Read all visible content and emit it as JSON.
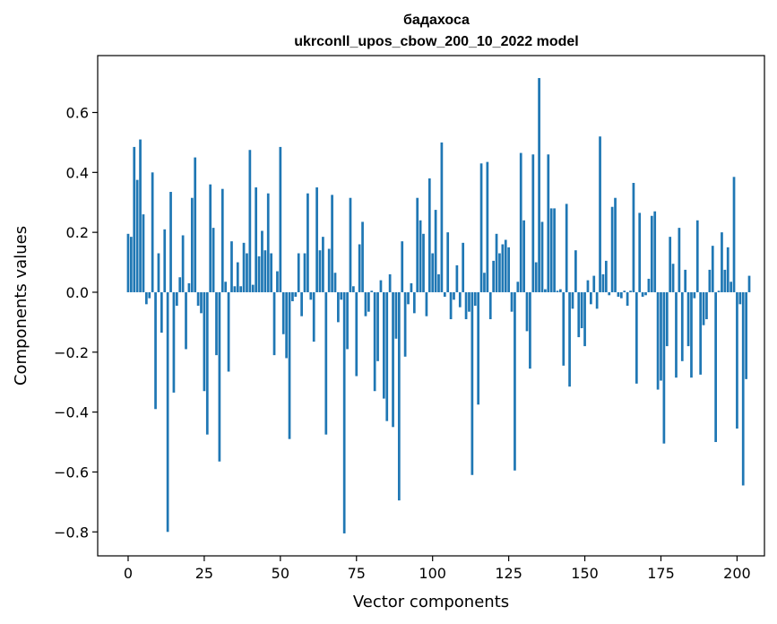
{
  "chart_data": {
    "type": "bar",
    "title_line1": "бадахоса",
    "title_line2": "ukrconll_upos_cbow_200_10_2022 model",
    "xlabel": "Vector components",
    "ylabel": "Components values",
    "xlim": [
      -10,
      209
    ],
    "ylim": [
      -0.88,
      0.79
    ],
    "xticks": [
      0,
      25,
      50,
      75,
      100,
      125,
      150,
      175,
      200
    ],
    "yticks": [
      -0.8,
      -0.6,
      -0.4,
      -0.2,
      0.0,
      0.2,
      0.4,
      0.6
    ],
    "ytick_labels": [
      "−0.8",
      "−0.6",
      "−0.4",
      "−0.2",
      "0.0",
      "0.2",
      "0.4",
      "0.6"
    ],
    "bar_color": "#1f77b4",
    "values": [
      0.195,
      0.185,
      0.485,
      0.375,
      0.51,
      0.26,
      -0.04,
      -0.02,
      0.4,
      -0.39,
      0.13,
      -0.135,
      0.21,
      -0.8,
      0.335,
      -0.335,
      -0.045,
      0.05,
      0.19,
      -0.19,
      0.03,
      0.315,
      0.45,
      -0.045,
      -0.07,
      -0.33,
      -0.475,
      0.36,
      0.215,
      -0.21,
      -0.565,
      0.345,
      0.035,
      -0.265,
      0.17,
      0.02,
      0.1,
      0.02,
      0.165,
      0.13,
      0.475,
      0.025,
      0.35,
      0.12,
      0.205,
      0.14,
      0.33,
      0.13,
      -0.21,
      0.07,
      0.485,
      -0.14,
      -0.22,
      -0.49,
      -0.03,
      -0.015,
      0.13,
      -0.08,
      0.13,
      0.33,
      -0.025,
      -0.165,
      0.35,
      0.14,
      0.185,
      -0.475,
      0.145,
      0.325,
      0.065,
      -0.1,
      -0.025,
      -0.805,
      -0.19,
      0.315,
      0.02,
      -0.28,
      0.16,
      0.235,
      -0.08,
      -0.065,
      0.005,
      -0.33,
      -0.23,
      0.04,
      -0.355,
      -0.43,
      0.06,
      -0.45,
      -0.155,
      -0.695,
      0.17,
      -0.215,
      -0.04,
      0.03,
      -0.07,
      0.315,
      0.24,
      0.195,
      -0.08,
      0.38,
      0.13,
      0.275,
      0.06,
      0.5,
      -0.015,
      0.2,
      -0.09,
      -0.025,
      0.09,
      -0.05,
      0.165,
      -0.09,
      -0.065,
      -0.61,
      -0.045,
      -0.375,
      0.43,
      0.065,
      0.435,
      -0.09,
      0.105,
      0.195,
      0.13,
      0.16,
      0.175,
      0.15,
      -0.065,
      -0.595,
      0.035,
      0.465,
      0.24,
      -0.13,
      -0.255,
      0.46,
      0.1,
      0.715,
      0.235,
      0.01,
      0.46,
      0.28,
      0.28,
      0.005,
      0.01,
      -0.245,
      0.295,
      -0.315,
      -0.055,
      0.14,
      -0.15,
      -0.12,
      -0.18,
      0.04,
      -0.04,
      0.055,
      -0.055,
      0.52,
      0.06,
      0.105,
      -0.01,
      0.285,
      0.315,
      -0.015,
      -0.02,
      0.005,
      -0.045,
      0.005,
      0.365,
      -0.305,
      0.265,
      -0.015,
      -0.01,
      0.045,
      0.255,
      0.27,
      -0.325,
      -0.295,
      -0.505,
      -0.18,
      0.185,
      0.095,
      -0.285,
      0.215,
      -0.23,
      0.075,
      -0.18,
      -0.285,
      -0.02,
      0.24,
      -0.275,
      -0.11,
      -0.09,
      0.075,
      0.155,
      -0.5,
      0.005,
      0.2,
      0.075,
      0.15,
      0.035,
      0.385,
      -0.455,
      -0.04,
      -0.645,
      -0.29,
      0.055
    ]
  }
}
